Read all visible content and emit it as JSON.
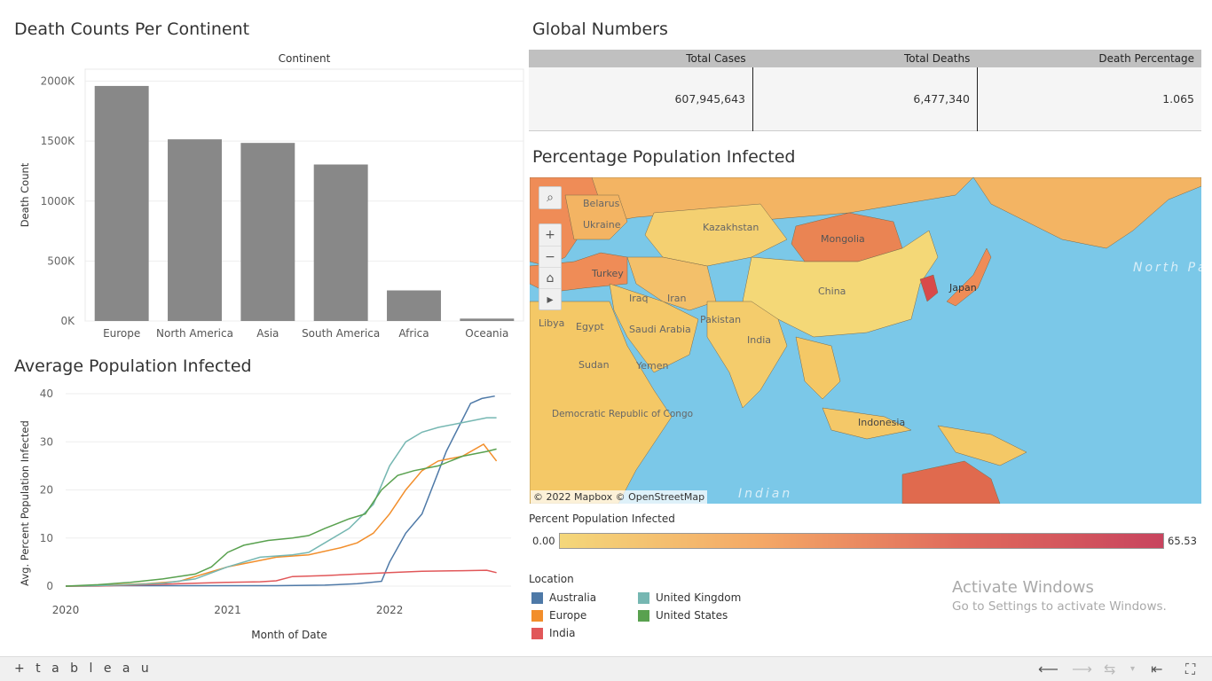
{
  "titles": {
    "deaths": "Death Counts Per Continent",
    "global": "Global Numbers",
    "ppi": "Percentage Population Infected",
    "avg": "Average Population Infected"
  },
  "chart_data": [
    {
      "type": "bar",
      "title": "Death Counts Per Continent",
      "header": "Continent",
      "ylabel": "Death Count",
      "categories": [
        "Europe",
        "North America",
        "Asia",
        "South America",
        "Africa",
        "Oceania"
      ],
      "values": [
        1960000,
        1515000,
        1485000,
        1305000,
        255000,
        20000
      ],
      "ylim": [
        0,
        2100000
      ],
      "yticks": [
        0,
        500000,
        1000000,
        1500000,
        2000000
      ],
      "ytick_labels": [
        "0K",
        "500K",
        "1000K",
        "1500K",
        "2000K"
      ],
      "color": "#888888"
    },
    {
      "type": "line",
      "title": "Average Population Infected",
      "xlabel": "Month of Date",
      "ylabel": "Avg. Percent Population Infected",
      "ylim": [
        0,
        40
      ],
      "yticks": [
        0,
        10,
        20,
        30,
        40
      ],
      "xticks": [
        "2020",
        "2021",
        "2022"
      ],
      "xlim": [
        2020.0,
        2022.75
      ],
      "series": [
        {
          "name": "Australia",
          "color": "#4e79a7",
          "x": [
            2020.0,
            2020.1,
            2020.3,
            2020.6,
            2021.0,
            2021.3,
            2021.6,
            2021.8,
            2021.95,
            2022.0,
            2022.1,
            2022.2,
            2022.35,
            2022.5,
            2022.57,
            2022.65
          ],
          "y": [
            0,
            0,
            0.1,
            0.1,
            0.1,
            0.1,
            0.2,
            0.5,
            1,
            5,
            11,
            15,
            28,
            38,
            39,
            39.5
          ]
        },
        {
          "name": "Europe",
          "color": "#f28e2b",
          "x": [
            2020.0,
            2020.1,
            2020.25,
            2020.5,
            2020.7,
            2020.9,
            2021.0,
            2021.15,
            2021.3,
            2021.5,
            2021.7,
            2021.8,
            2021.9,
            2022.0,
            2022.1,
            2022.2,
            2022.3,
            2022.45,
            2022.58,
            2022.66
          ],
          "y": [
            0,
            0,
            0.2,
            0.5,
            1,
            3,
            4,
            5,
            6,
            6.5,
            8,
            9,
            11,
            15,
            20,
            24,
            26,
            27,
            29.5,
            26
          ]
        },
        {
          "name": "India",
          "color": "#e15759",
          "x": [
            2020.0,
            2020.2,
            2020.5,
            2020.8,
            2021.0,
            2021.2,
            2021.3,
            2021.4,
            2021.6,
            2021.8,
            2022.0,
            2022.2,
            2022.45,
            2022.6,
            2022.66
          ],
          "y": [
            0,
            0,
            0.3,
            0.6,
            0.8,
            0.9,
            1.1,
            2,
            2.2,
            2.5,
            2.8,
            3.1,
            3.2,
            3.3,
            2.8
          ]
        },
        {
          "name": "United Kingdom",
          "color": "#76b7b2",
          "x": [
            2020.0,
            2020.2,
            2020.4,
            2020.6,
            2020.8,
            2021.0,
            2021.1,
            2021.2,
            2021.4,
            2021.5,
            2021.6,
            2021.75,
            2021.9,
            2022.0,
            2022.1,
            2022.2,
            2022.3,
            2022.45,
            2022.6,
            2022.66
          ],
          "y": [
            0,
            0.1,
            0.3,
            0.6,
            1.5,
            4,
            5,
            6,
            6.5,
            7,
            9,
            12,
            17,
            25,
            30,
            32,
            33,
            34,
            35,
            35
          ]
        },
        {
          "name": "United States",
          "color": "#59a14f",
          "x": [
            2020.0,
            2020.2,
            2020.4,
            2020.6,
            2020.8,
            2020.9,
            2021.0,
            2021.1,
            2021.25,
            2021.4,
            2021.5,
            2021.6,
            2021.75,
            2021.85,
            2021.95,
            2022.05,
            2022.15,
            2022.3,
            2022.45,
            2022.6,
            2022.66
          ],
          "y": [
            0,
            0.3,
            0.8,
            1.5,
            2.5,
            4,
            7,
            8.5,
            9.5,
            10,
            10.5,
            12,
            14,
            15,
            20,
            23,
            24,
            25,
            27,
            28,
            28.5
          ]
        }
      ]
    }
  ],
  "global_numbers": {
    "headers": [
      "Total Cases",
      "Total Deaths",
      "Death Percentage"
    ],
    "values": [
      "607,945,643",
      "6,477,340",
      "1.065"
    ]
  },
  "map": {
    "labels": [
      "Belarus",
      "Ukraine",
      "Kazakhstan",
      "Mongolia",
      "Turkey",
      "China",
      "Iran",
      "Iraq",
      "Japan",
      "Libya",
      "Egypt",
      "Saudi Arabia",
      "Pakistan",
      "India",
      "Sudan",
      "Yemen",
      "Democratic Republic of Congo",
      "Indonesia",
      "North Pacific Ocean",
      "Indian"
    ],
    "attribution": "© 2022 Mapbox  © OpenStreetMap",
    "controls": [
      "search-icon",
      "zoom-in-icon",
      "zoom-out-icon",
      "home-icon",
      "play-icon"
    ]
  },
  "legend": {
    "title": "Percent Population Infected",
    "min": "0.00",
    "max": "65.53"
  },
  "location_legend": {
    "title": "Location",
    "items": [
      {
        "label": "Australia",
        "color": "#4e79a7"
      },
      {
        "label": "Europe",
        "color": "#f28e2b"
      },
      {
        "label": "India",
        "color": "#e15759"
      },
      {
        "label": "United Kingdom",
        "color": "#76b7b2"
      },
      {
        "label": "United States",
        "color": "#59a14f"
      }
    ]
  },
  "watermark": {
    "line1": "Activate Windows",
    "line2": "Go to Settings to activate Windows."
  },
  "footer": {
    "logo": "+ t a b l e a u"
  }
}
